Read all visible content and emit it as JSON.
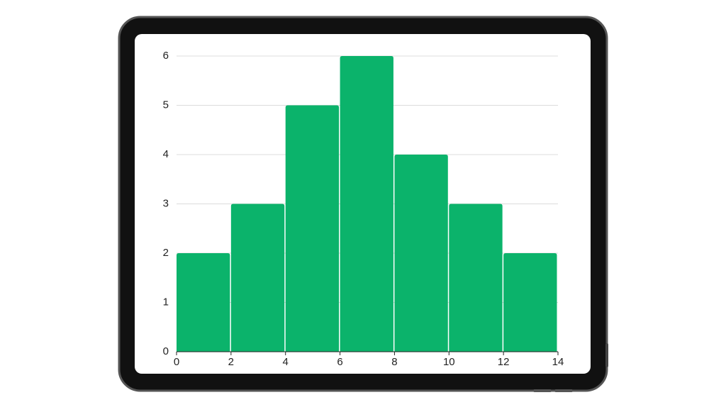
{
  "chart_data": {
    "type": "histogram",
    "bins": [
      0,
      2,
      4,
      6,
      8,
      10,
      12,
      14
    ],
    "values": [
      2,
      3,
      5,
      6,
      4,
      3,
      2
    ],
    "color": "#0bb36b",
    "xlim": [
      0,
      14
    ],
    "xticks": [
      0,
      2,
      4,
      6,
      8,
      10,
      12,
      14
    ],
    "ylim": [
      0,
      6
    ],
    "yticks": [
      0,
      1,
      2,
      3,
      4,
      5,
      6
    ],
    "grid": true
  }
}
